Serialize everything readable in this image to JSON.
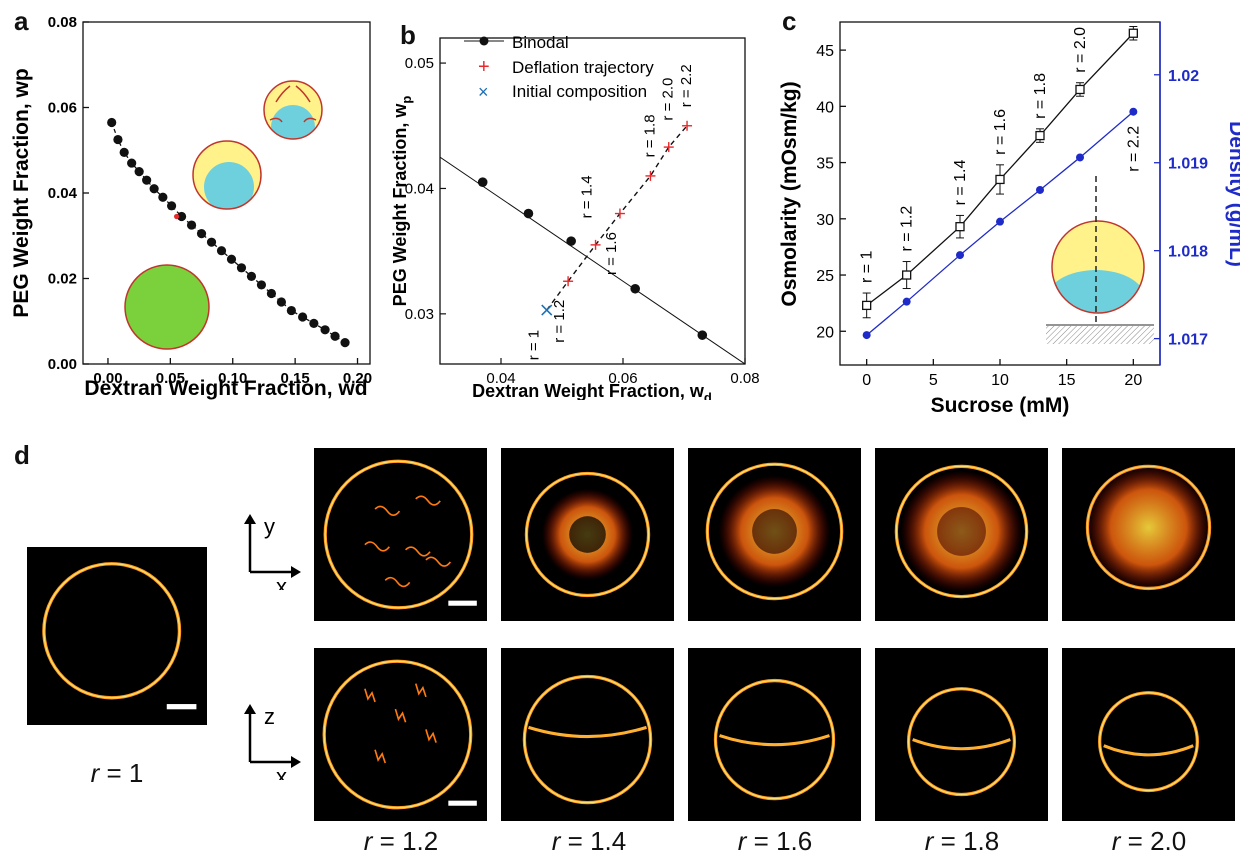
{
  "panels": {
    "a": {
      "letter": "a"
    },
    "b": {
      "letter": "b"
    },
    "c": {
      "letter": "c"
    },
    "d": {
      "letter": "d"
    }
  },
  "chart_data": [
    {
      "panel": "a",
      "type": "scatter",
      "xlabel": "Dextran Weight Fraction, wd",
      "ylabel": "PEG Weight Fraction, wp",
      "xlim": [
        -0.02,
        0.21
      ],
      "ylim": [
        0.0,
        0.08
      ],
      "xticks": [
        "0.00",
        "0.05",
        "0.10",
        "0.15",
        "0.20"
      ],
      "yticks": [
        "0.00",
        "0.02",
        "0.04",
        "0.06",
        "0.08"
      ],
      "series": [
        {
          "style": "black dots with dashed line",
          "x": [
            0.003,
            0.008,
            0.013,
            0.019,
            0.025,
            0.031,
            0.037,
            0.044,
            0.051,
            0.059,
            0.067,
            0.075,
            0.083,
            0.091,
            0.099,
            0.107,
            0.115,
            0.123,
            0.131,
            0.139,
            0.147,
            0.156,
            0.165,
            0.174,
            0.182,
            0.19
          ],
          "y": [
            0.0565,
            0.0525,
            0.0495,
            0.047,
            0.045,
            0.043,
            0.041,
            0.039,
            0.037,
            0.0345,
            0.0325,
            0.0305,
            0.0285,
            0.0265,
            0.0245,
            0.0225,
            0.0205,
            0.0185,
            0.0165,
            0.0145,
            0.0125,
            0.011,
            0.0095,
            0.008,
            0.0065,
            0.005
          ]
        }
      ],
      "highlight_point": {
        "x": 0.055,
        "y": 0.0345,
        "color": "#e8282b"
      }
    },
    {
      "panel": "b",
      "type": "scatter",
      "xlabel": "Dextran Weight Fraction, w",
      "xlabel_sub": "d",
      "ylabel": "PEG Weight Fraction, w",
      "ylabel_sub": "p",
      "xlim": [
        0.03,
        0.08
      ],
      "ylim": [
        0.026,
        0.052
      ],
      "xticks": [
        "0.04",
        "0.06",
        "0.08"
      ],
      "yticks": [
        "0.03",
        "0.04",
        "0.05"
      ],
      "legend": [
        "Binodal",
        "Deflation trajectory",
        "Initial composition"
      ],
      "binodal": {
        "x": [
          0.037,
          0.0445,
          0.0515,
          0.062,
          0.073
        ],
        "y": [
          0.0405,
          0.038,
          0.0358,
          0.032,
          0.0283
        ],
        "line_x": [
          0.03,
          0.08
        ],
        "line_y": [
          0.0425,
          0.026
        ]
      },
      "trajectory": {
        "x": [
          0.0475,
          0.051,
          0.0555,
          0.0595,
          0.0645,
          0.0675,
          0.0705
        ],
        "y": [
          0.0303,
          0.0326,
          0.0355,
          0.038,
          0.041,
          0.0433,
          0.045
        ],
        "labels": [
          "r = 1",
          "r = 1.2",
          "r = 1.4",
          "r = 1.6",
          "r = 1.8",
          "r = 2.0",
          "r = 2.2"
        ]
      },
      "initial": {
        "x": 0.0475,
        "y": 0.0303
      }
    },
    {
      "panel": "c",
      "type": "line",
      "xlabel": "Sucrose (mM)",
      "ylabel": "Osmolarity (mOsm/kg)",
      "ylabel_right": "Density (g/mL)",
      "xlim": [
        -2,
        22
      ],
      "ylim": [
        17,
        47.5
      ],
      "ylim_right": [
        1.0167,
        1.0206
      ],
      "xticks": [
        "0",
        "5",
        "10",
        "15",
        "20"
      ],
      "yticks": [
        "20",
        "25",
        "30",
        "35",
        "40",
        "45"
      ],
      "yticks_right": [
        "1.017",
        "1.018",
        "1.019",
        "1.02"
      ],
      "series": [
        {
          "name": "Osmolarity",
          "x": [
            0,
            3,
            7,
            10,
            13,
            16,
            20
          ],
          "y": [
            22.3,
            25.0,
            29.3,
            33.5,
            37.4,
            41.5,
            46.5
          ],
          "err": [
            1.1,
            1.2,
            1.0,
            1.3,
            0.6,
            0.6,
            0.6
          ],
          "labels": [
            "r = 1",
            "r = 1.2",
            "r = 1.4",
            "r = 1.6",
            "r = 1.8",
            "r = 2.0",
            "r = 2.2"
          ]
        },
        {
          "name": "Density",
          "x": [
            0,
            3,
            7,
            10,
            13,
            16,
            20
          ],
          "y": [
            1.01704,
            1.01742,
            1.01795,
            1.01833,
            1.01869,
            1.01906,
            1.01958
          ],
          "color": "#1f2bc8"
        }
      ]
    }
  ],
  "micrographs": {
    "labels": [
      "r = 1",
      "r = 1.2",
      "r = 1.4",
      "r = 1.6",
      "r = 1.8",
      "r = 2.0"
    ],
    "axis_top": {
      "vertical": "y",
      "horizontal": "x"
    },
    "axis_bottom": {
      "vertical": "z",
      "horizontal": "x"
    }
  },
  "colors": {
    "membrane": "#ffb030",
    "dense_phase": "#6ed0dc",
    "light_phase": "#fff28a",
    "initial_phase": "#7ad13c",
    "density_blue": "#1f2bc8",
    "trajectory_red": "#e8282b"
  }
}
